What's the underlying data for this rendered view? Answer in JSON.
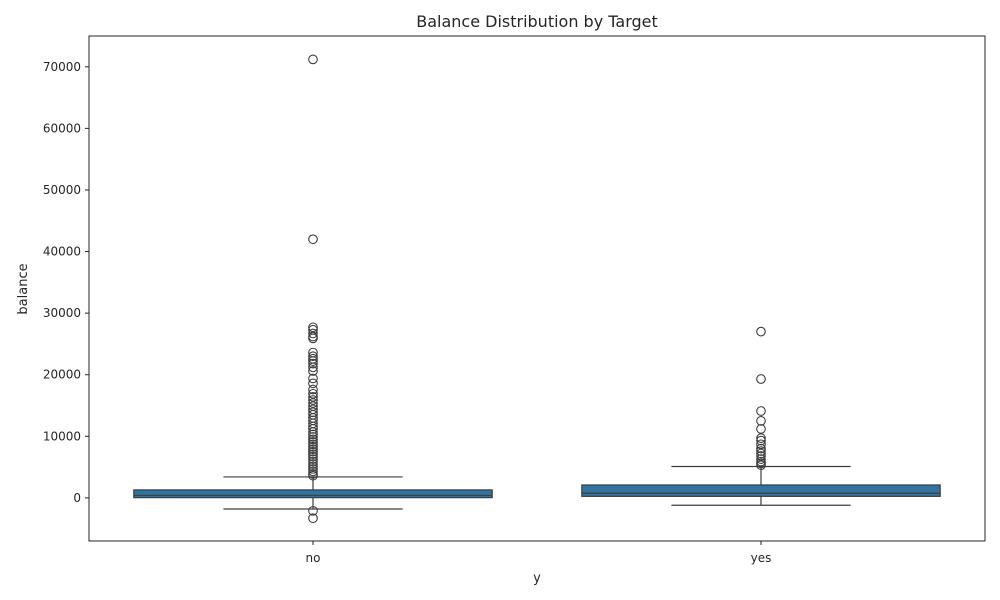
{
  "chart_data": {
    "type": "box",
    "title": "Balance Distribution by Target",
    "xlabel": "y",
    "ylabel": "balance",
    "categories": [
      "no",
      "yes"
    ],
    "ylim": [
      -7000,
      75000
    ],
    "yticks": [
      0,
      10000,
      20000,
      30000,
      40000,
      50000,
      60000,
      70000
    ],
    "grid": false,
    "colors": {
      "box_fill": "#3274a1",
      "line": "#3d3d3d"
    },
    "boxes": [
      {
        "category": "no",
        "whisker_low": -1800,
        "q1": 40,
        "median": 420,
        "q3": 1300,
        "whisker_high": 3400,
        "outliers": [
          71200,
          42000,
          27700,
          27300,
          26700,
          26200,
          25900,
          23600,
          23000,
          22600,
          22200,
          21800,
          21200,
          20600,
          19400,
          18600,
          17600,
          16900,
          16400,
          15900,
          15400,
          14900,
          14400,
          13900,
          13500,
          13000,
          12600,
          12100,
          11600,
          11200,
          10700,
          10300,
          9900,
          9500,
          9100,
          8700,
          8300,
          7900,
          7500,
          7100,
          6700,
          6300,
          5900,
          5500,
          5100,
          4700,
          4300,
          3900,
          3600,
          -2100,
          -3300
        ]
      },
      {
        "category": "yes",
        "whisker_low": -1200,
        "q1": 250,
        "median": 750,
        "q3": 2100,
        "whisker_high": 5100,
        "outliers": [
          27000,
          19300,
          14100,
          12500,
          11200,
          9700,
          9300,
          8700,
          8000,
          7600,
          7200,
          6800,
          6300,
          5900,
          5600,
          5300
        ]
      }
    ]
  }
}
